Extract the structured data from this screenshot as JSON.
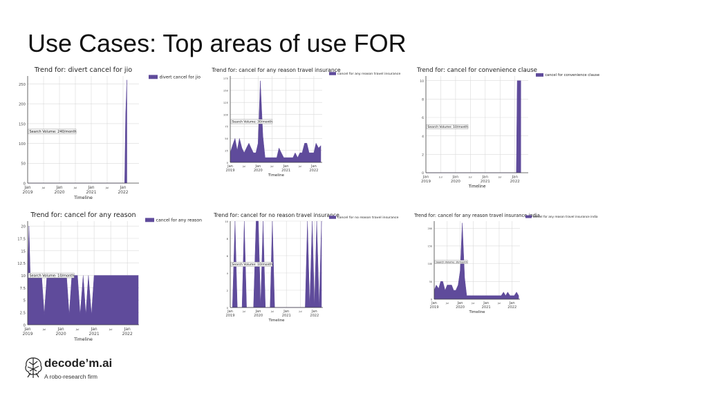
{
  "slide": {
    "title": "Use Cases: Top areas of use FOR"
  },
  "logo": {
    "name": "decode’m.ai",
    "tagline": "A robo-research firm",
    "icon": "brain-icon"
  },
  "colors": {
    "series": "#5f4b9b",
    "grid": "#d9d9d9",
    "axis": "#444444"
  },
  "chart_data": [
    {
      "type": "area",
      "title": "Trend for: divert cancel for jio",
      "xlabel": "Timeline",
      "ylabel": "",
      "xlim": [
        2019.0,
        2022.5
      ],
      "ylim": [
        0,
        270
      ],
      "yticks": [
        0,
        50,
        100,
        150,
        200,
        250
      ],
      "xticks": [
        {
          "v": 2019.0,
          "l1": "Jan",
          "l2": "2019"
        },
        {
          "v": 2019.5,
          "l1": "Jul",
          "l2": ""
        },
        {
          "v": 2020.0,
          "l1": "Jan",
          "l2": "2020"
        },
        {
          "v": 2020.5,
          "l1": "Jul",
          "l2": ""
        },
        {
          "v": 2021.0,
          "l1": "Jan",
          "l2": "2021"
        },
        {
          "v": 2021.5,
          "l1": "Jul",
          "l2": ""
        },
        {
          "v": 2022.0,
          "l1": "Jan",
          "l2": "2022"
        }
      ],
      "series": [
        {
          "name": "divert cancel for jio",
          "x": [
            2019.0,
            2022.05,
            2022.08,
            2022.12
          ],
          "y": [
            0,
            0,
            170,
            260
          ]
        }
      ],
      "annotation": {
        "text": "Search Volume: 240/month",
        "x": 2019.0,
        "y": 130
      },
      "legend": "top-right",
      "grid": true
    },
    {
      "type": "area",
      "title": "Trend for: cancel for any reason travel insurance",
      "xlabel": "Timeline",
      "ylabel": "",
      "xlim": [
        2019.0,
        2022.3
      ],
      "ylim": [
        0,
        180
      ],
      "yticks": [
        0,
        25,
        50,
        75,
        100,
        125,
        150,
        175
      ],
      "xticks": [
        {
          "v": 2019.0,
          "l1": "Jan",
          "l2": "2019"
        },
        {
          "v": 2019.5,
          "l1": "Jul",
          "l2": ""
        },
        {
          "v": 2020.0,
          "l1": "Jan",
          "l2": "2020"
        },
        {
          "v": 2020.5,
          "l1": "Jul",
          "l2": ""
        },
        {
          "v": 2021.0,
          "l1": "Jan",
          "l2": "2021"
        },
        {
          "v": 2021.5,
          "l1": "Jul",
          "l2": ""
        },
        {
          "v": 2022.0,
          "l1": "Jan",
          "l2": "2022"
        }
      ],
      "series": [
        {
          "name": "cancel for any reason travel insurance",
          "x": [
            2019.0,
            2019.08,
            2019.17,
            2019.25,
            2019.33,
            2019.42,
            2019.5,
            2019.58,
            2019.67,
            2019.75,
            2019.83,
            2019.92,
            2020.0,
            2020.08,
            2020.17,
            2020.25,
            2020.33,
            2020.42,
            2020.5,
            2020.58,
            2020.67,
            2020.75,
            2020.83,
            2020.92,
            2021.0,
            2021.08,
            2021.17,
            2021.25,
            2021.33,
            2021.42,
            2021.5,
            2021.58,
            2021.67,
            2021.75,
            2021.83,
            2021.92,
            2022.0,
            2022.08,
            2022.17,
            2022.25
          ],
          "y": [
            20,
            35,
            50,
            25,
            50,
            30,
            20,
            30,
            40,
            30,
            20,
            20,
            40,
            170,
            55,
            10,
            10,
            10,
            10,
            10,
            10,
            30,
            20,
            10,
            10,
            10,
            10,
            10,
            20,
            10,
            20,
            20,
            40,
            40,
            20,
            20,
            20,
            40,
            30,
            35
          ]
        }
      ],
      "annotation": {
        "text": "Search Volume: 30/month",
        "x": 2019.0,
        "y": 85
      },
      "legend": "top-right",
      "grid": true
    },
    {
      "type": "area",
      "title": "Trend for: cancel for convenience clause",
      "xlabel": "Timeline",
      "ylabel": "",
      "xlim": [
        2019.0,
        2022.45
      ],
      "ylim": [
        0,
        10.5
      ],
      "yticks": [
        0,
        2,
        4,
        6,
        8,
        10
      ],
      "xticks": [
        {
          "v": 2019.0,
          "l1": "Jan",
          "l2": "2019"
        },
        {
          "v": 2019.5,
          "l1": "Jul",
          "l2": ""
        },
        {
          "v": 2020.0,
          "l1": "Jan",
          "l2": "2020"
        },
        {
          "v": 2020.5,
          "l1": "Jul",
          "l2": ""
        },
        {
          "v": 2021.0,
          "l1": "Jan",
          "l2": "2021"
        },
        {
          "v": 2021.5,
          "l1": "Jul",
          "l2": ""
        },
        {
          "v": 2022.0,
          "l1": "Jan",
          "l2": "2022"
        }
      ],
      "series": [
        {
          "name": "cancel for convenience clause",
          "x": [
            2019.0,
            2022.05,
            2022.08,
            2022.2
          ],
          "y": [
            0,
            0,
            10,
            10
          ]
        }
      ],
      "annotation": {
        "text": "Search Volume: 10/month",
        "x": 2019.0,
        "y": 5
      },
      "legend": "top-right",
      "grid": true
    },
    {
      "type": "area",
      "title": "Trend for: cancel for any reason",
      "xlabel": "Timeline",
      "ylabel": "",
      "xlim": [
        2019.0,
        2022.35
      ],
      "ylim": [
        0,
        21
      ],
      "yticks": [
        0.0,
        2.5,
        5.0,
        7.5,
        10.0,
        12.5,
        15.0,
        17.5,
        20.0
      ],
      "xticks": [
        {
          "v": 2019.0,
          "l1": "Jan",
          "l2": "2019"
        },
        {
          "v": 2019.5,
          "l1": "Jul",
          "l2": ""
        },
        {
          "v": 2020.0,
          "l1": "Jan",
          "l2": "2020"
        },
        {
          "v": 2020.5,
          "l1": "Jul",
          "l2": ""
        },
        {
          "v": 2021.0,
          "l1": "Jan",
          "l2": "2021"
        },
        {
          "v": 2021.5,
          "l1": "Jul",
          "l2": ""
        },
        {
          "v": 2022.0,
          "l1": "Jan",
          "l2": "2022"
        }
      ],
      "series": [
        {
          "name": "cancel for any reason",
          "x": [
            2019.0,
            2019.04,
            2019.08,
            2019.17,
            2019.25,
            2019.33,
            2019.42,
            2019.5,
            2019.58,
            2019.67,
            2019.75,
            2019.83,
            2019.92,
            2020.0,
            2020.08,
            2020.17,
            2020.25,
            2020.33,
            2020.42,
            2020.5,
            2020.58,
            2020.67,
            2020.75,
            2020.83,
            2020.92,
            2021.0,
            2021.08,
            2021.17,
            2021.25,
            2021.33,
            2021.42,
            2021.5,
            2021.58,
            2021.67,
            2021.75,
            2021.83,
            2021.92,
            2022.0,
            2022.08,
            2022.17,
            2022.25,
            2022.33
          ],
          "y": [
            10,
            20,
            10,
            10,
            10,
            10,
            10,
            2,
            10,
            10,
            10,
            10,
            10,
            10,
            10,
            10,
            2,
            10,
            10,
            10,
            2,
            10,
            2,
            10,
            2,
            10,
            10,
            10,
            10,
            10,
            10,
            10,
            10,
            10,
            10,
            10,
            10,
            10,
            10,
            10,
            10,
            10
          ]
        }
      ],
      "annotation": {
        "text": "Search Volume: 10/month",
        "x": 2019.0,
        "y": 10
      },
      "legend": "top-right",
      "grid": true
    },
    {
      "type": "area",
      "title": "Trend for: cancel for no reason travel insurance",
      "xlabel": "Timeline",
      "ylabel": "",
      "xlim": [
        2019.0,
        2022.3
      ],
      "ylim": [
        0,
        10
      ],
      "yticks": [
        0,
        2,
        4,
        6,
        8,
        10
      ],
      "xticks": [
        {
          "v": 2019.0,
          "l1": "Jan",
          "l2": "2019"
        },
        {
          "v": 2019.5,
          "l1": "Jul",
          "l2": ""
        },
        {
          "v": 2020.0,
          "l1": "Jan",
          "l2": "2020"
        },
        {
          "v": 2020.5,
          "l1": "Jul",
          "l2": ""
        },
        {
          "v": 2021.0,
          "l1": "Jan",
          "l2": "2021"
        },
        {
          "v": 2021.5,
          "l1": "Jul",
          "l2": ""
        },
        {
          "v": 2022.0,
          "l1": "Jan",
          "l2": "2022"
        }
      ],
      "series": [
        {
          "name": "cancel for no reason travel insurance",
          "x": [
            2019.0,
            2019.08,
            2019.17,
            2019.25,
            2019.33,
            2019.42,
            2019.5,
            2019.58,
            2019.67,
            2019.75,
            2019.83,
            2019.92,
            2020.0,
            2020.08,
            2020.17,
            2020.25,
            2020.33,
            2020.42,
            2020.5,
            2020.58,
            2020.67,
            2020.75,
            2020.83,
            2020.92,
            2021.0,
            2021.08,
            2021.17,
            2021.25,
            2021.33,
            2021.42,
            2021.5,
            2021.58,
            2021.67,
            2021.75,
            2021.83,
            2021.92,
            2022.0,
            2022.08,
            2022.17,
            2022.25
          ],
          "y": [
            0,
            0,
            10,
            0,
            0,
            0,
            10,
            0,
            0,
            0,
            0,
            10,
            10,
            0,
            10,
            0,
            0,
            0,
            10,
            0,
            0,
            0,
            0,
            0,
            0,
            0,
            0,
            0,
            0,
            0,
            0,
            0,
            0,
            10,
            0,
            10,
            0,
            10,
            0,
            10
          ]
        }
      ],
      "annotation": {
        "text": "Search Volume: 10/month",
        "x": 2019.0,
        "y": 5
      },
      "legend": "top-right",
      "grid": true
    },
    {
      "type": "area",
      "title": "Trend for: cancel for any reason travel insurance india",
      "xlabel": "Timeline",
      "ylabel": "",
      "xlim": [
        2019.0,
        2022.3
      ],
      "ylim": [
        0,
        220
      ],
      "yticks": [
        0,
        50,
        100,
        150,
        200
      ],
      "xticks": [
        {
          "v": 2019.0,
          "l1": "Jan",
          "l2": "2019"
        },
        {
          "v": 2019.5,
          "l1": "Jul",
          "l2": ""
        },
        {
          "v": 2020.0,
          "l1": "Jan",
          "l2": "2020"
        },
        {
          "v": 2020.5,
          "l1": "Jul",
          "l2": ""
        },
        {
          "v": 2021.0,
          "l1": "Jan",
          "l2": "2021"
        },
        {
          "v": 2021.5,
          "l1": "Jul",
          "l2": ""
        },
        {
          "v": 2022.0,
          "l1": "Jan",
          "l2": "2022"
        }
      ],
      "series": [
        {
          "name": "cancel for any reason travel insurance india",
          "x": [
            2019.0,
            2019.08,
            2019.17,
            2019.25,
            2019.33,
            2019.42,
            2019.5,
            2019.58,
            2019.67,
            2019.75,
            2019.83,
            2019.92,
            2020.0,
            2020.08,
            2020.17,
            2020.25,
            2020.33,
            2020.42,
            2020.5,
            2020.58,
            2020.67,
            2020.75,
            2020.83,
            2020.92,
            2021.0,
            2021.08,
            2021.17,
            2021.25,
            2021.33,
            2021.42,
            2021.5,
            2021.58,
            2021.67,
            2021.75,
            2021.83,
            2021.92,
            2022.0,
            2022.08,
            2022.17,
            2022.25
          ],
          "y": [
            25,
            40,
            30,
            50,
            50,
            25,
            40,
            40,
            40,
            25,
            25,
            40,
            80,
            215,
            60,
            10,
            10,
            10,
            10,
            10,
            10,
            10,
            10,
            10,
            10,
            10,
            10,
            10,
            10,
            10,
            10,
            10,
            20,
            10,
            20,
            10,
            10,
            10,
            20,
            10
          ]
        }
      ],
      "annotation": {
        "text": "Search Volume: 10/month",
        "x": 2019.0,
        "y": 105
      },
      "legend": "top-right",
      "grid": true
    }
  ]
}
